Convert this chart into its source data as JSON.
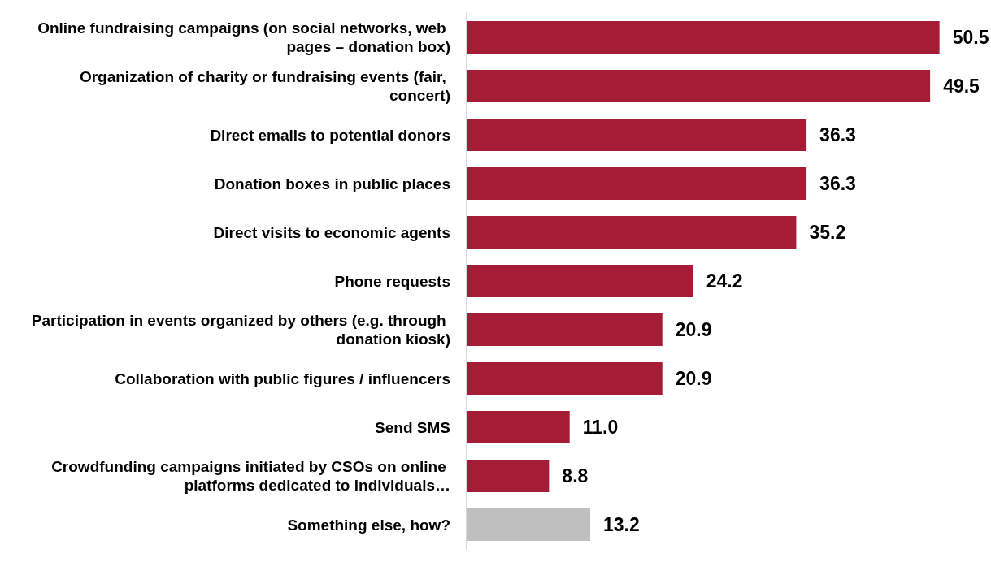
{
  "chart_data": {
    "type": "bar",
    "orientation": "horizontal",
    "categories": [
      "Online fundraising campaigns (on social networks, web pages – donation box)",
      "Organization of charity or fundraising events (fair, concert)",
      "Direct emails to potential donors",
      "Donation boxes in public places",
      "Direct visits to economic agents",
      "Phone requests",
      "Participation in events organized by others (e.g. through donation kiosk)",
      "Collaboration with public figures / influencers",
      "Send SMS",
      "Crowdfunding campaigns initiated by CSOs on online platforms dedicated to individuals…",
      "Something else, how?"
    ],
    "values": [
      50.5,
      49.5,
      36.3,
      36.3,
      35.2,
      24.2,
      20.9,
      20.9,
      11.0,
      8.8,
      13.2
    ],
    "value_labels": [
      "50.5",
      "49.5",
      "36.3",
      "36.3",
      "35.2",
      "24.2",
      "20.9",
      "20.9",
      "11.0",
      "8.8",
      "13.2"
    ],
    "colors": [
      "#a51c36",
      "#a51c36",
      "#a51c36",
      "#a51c36",
      "#a51c36",
      "#a51c36",
      "#a51c36",
      "#a51c36",
      "#a51c36",
      "#a51c36",
      "#bfbfbf"
    ],
    "grid": false
  }
}
